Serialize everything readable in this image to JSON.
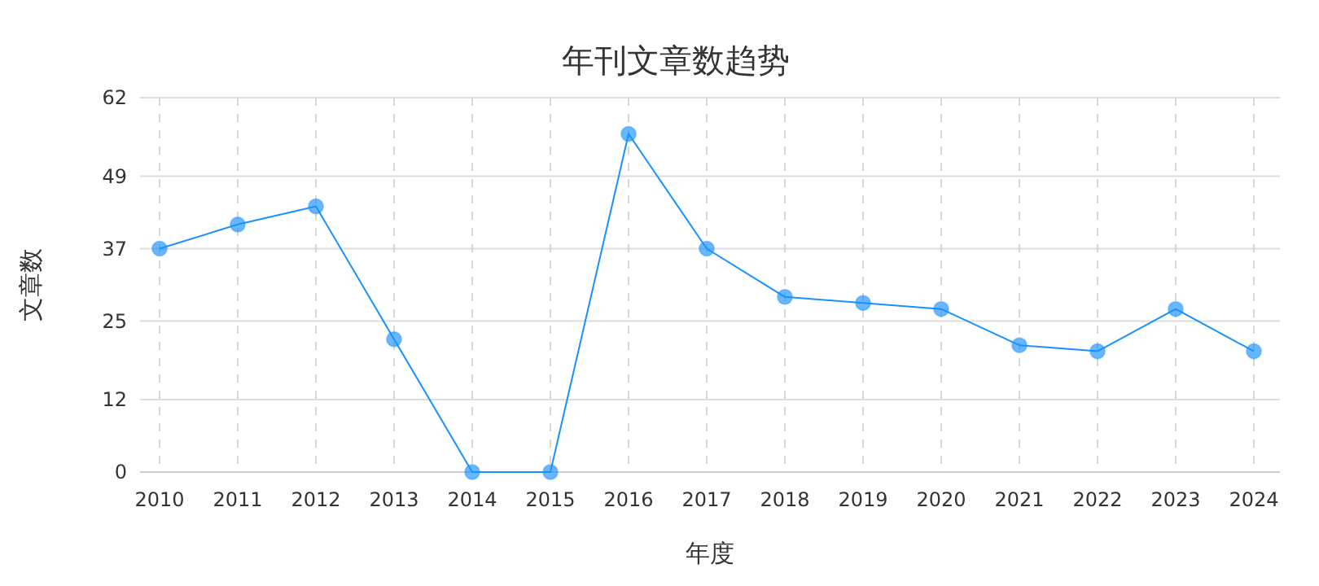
{
  "chart_data": {
    "type": "line",
    "title": "年刊文章数趋势",
    "xlabel": "年度",
    "ylabel": "文章数",
    "categories": [
      "2010",
      "2011",
      "2012",
      "2013",
      "2014",
      "2015",
      "2016",
      "2017",
      "2018",
      "2019",
      "2020",
      "2021",
      "2022",
      "2023",
      "2024"
    ],
    "series": [
      {
        "color": "#1890ff",
        "values": [
          37,
          41,
          44,
          22,
          0,
          0,
          56,
          37,
          29,
          28,
          27,
          21,
          20,
          27,
          20
        ]
      }
    ],
    "ylim": [
      0,
      62
    ],
    "yticks": [
      0,
      12,
      25,
      37,
      49,
      62
    ],
    "grid": true,
    "marker": "circle",
    "line_style": "solid"
  }
}
